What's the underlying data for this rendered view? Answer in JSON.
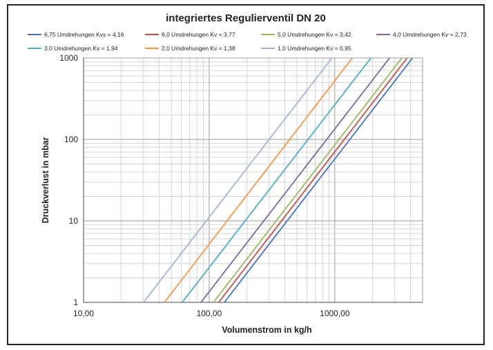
{
  "chart_data": {
    "type": "line",
    "title": "integriertes Regulierventil DN 20",
    "xlabel": "Volumenstrom in kg/h",
    "ylabel": "Druckverlust in mbar",
    "xscale": "log",
    "yscale": "log",
    "xlim": [
      10,
      5000
    ],
    "ylim": [
      1,
      1000
    ],
    "xticks": [
      "10,00",
      "100,00",
      "1000,00"
    ],
    "yticks": [
      "1",
      "10",
      "100",
      "1000"
    ],
    "grid": true,
    "legend_position": "top",
    "series": [
      {
        "name": "6,75 Umdrehungen Kvs = 4,16",
        "color": "#4472C4",
        "x": [
          132,
          4160
        ],
        "y": [
          1,
          1000
        ]
      },
      {
        "name": "6,0 Umdrehungen Kv = 3,77",
        "color": "#C0504D",
        "x": [
          119,
          3770
        ],
        "y": [
          1,
          1000
        ]
      },
      {
        "name": "5,0 Umdrehungen Kv = 3,42",
        "color": "#9BBB59",
        "x": [
          108,
          3420
        ],
        "y": [
          1,
          1000
        ]
      },
      {
        "name": "4,0 Umdrehungen Kv = 2,73",
        "color": "#8064A2",
        "x": [
          86,
          2730
        ],
        "y": [
          1,
          1000
        ]
      },
      {
        "name": "3,0 Umdrehungen Kv = 1,94",
        "color": "#4BACC6",
        "x": [
          61,
          1940
        ],
        "y": [
          1,
          1000
        ]
      },
      {
        "name": "2,0 Umdrehungen Kv = 1,38",
        "color": "#F79646",
        "x": [
          44,
          1380
        ],
        "y": [
          1,
          1000
        ]
      },
      {
        "name": "1,0 Umdrehungen Kv = 0,95",
        "color": "#A5B4DC",
        "x": [
          30,
          950
        ],
        "y": [
          1,
          1000
        ]
      }
    ]
  }
}
